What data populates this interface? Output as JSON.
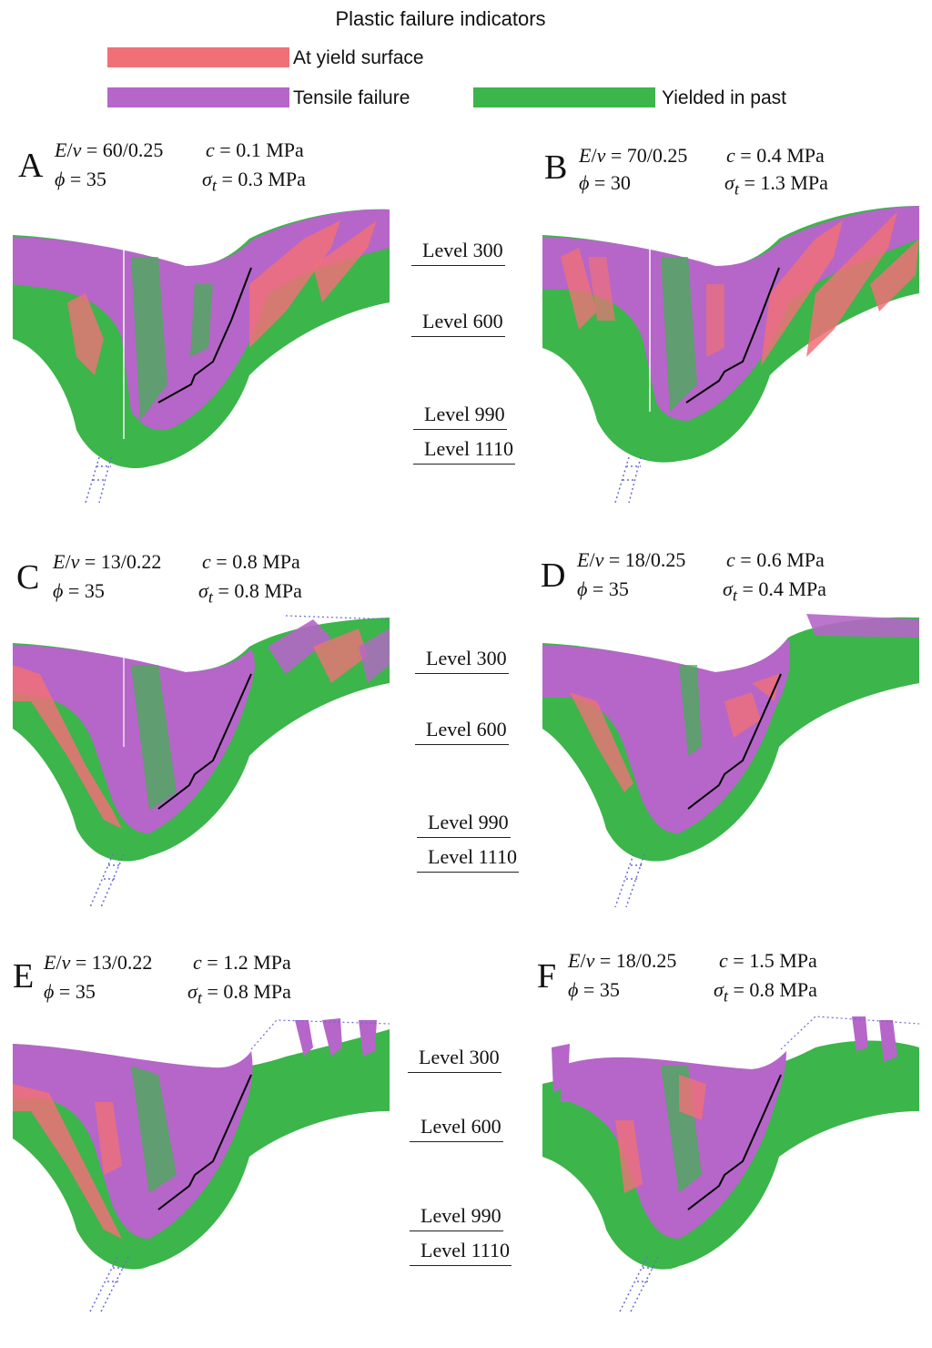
{
  "legend": {
    "title": "Plastic failure indicators",
    "items": [
      {
        "label": "At yield surface",
        "color": "#f07078"
      },
      {
        "label": "Tensile failure",
        "color": "#b566c8"
      },
      {
        "label": "Yielded in past",
        "color": "#3cb54a"
      }
    ]
  },
  "colors": {
    "yield": "#f07078",
    "tensile": "#b566c8",
    "past": "#3cb54a",
    "fault": "#000000",
    "dotted": "#6a6ad8"
  },
  "panels": [
    {
      "letter": "A",
      "E_nu": "60/0.25",
      "c": "0.1 MPa",
      "phi": "35",
      "sigma": "0.3 MPa"
    },
    {
      "letter": "B",
      "E_nu": "70/0.25",
      "c": "0.4 MPa",
      "phi": "30",
      "sigma": "1.3 MPa"
    },
    {
      "letter": "C",
      "E_nu": "13/0.22",
      "c": "0.8 MPa",
      "phi": "35",
      "sigma": "0.8 MPa"
    },
    {
      "letter": "D",
      "E_nu": "18/0.25",
      "c": "0.6 MPa",
      "phi": "35",
      "sigma": "0.4 MPa"
    },
    {
      "letter": "E",
      "E_nu": "13/0.22",
      "c": "1.2 MPa",
      "phi": "35",
      "sigma": "0.8 MPa"
    },
    {
      "letter": "F",
      "E_nu": "18/0.25",
      "c": "1.5 MPa",
      "phi": "35",
      "sigma": "0.8 MPa"
    }
  ],
  "levels": [
    "Level 300",
    "Level 600",
    "Level 990",
    "Level 1110"
  ]
}
